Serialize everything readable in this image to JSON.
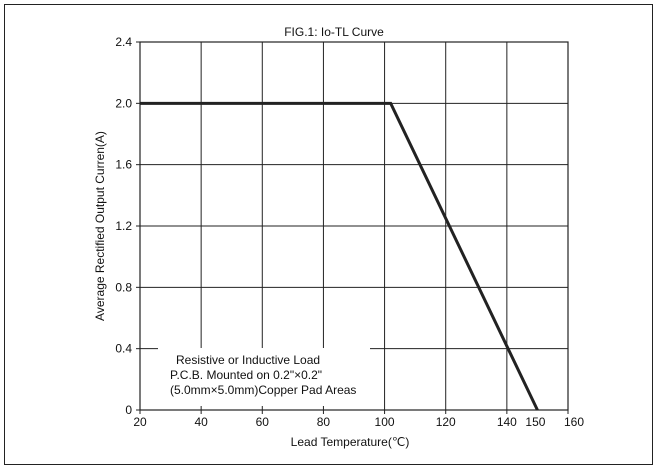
{
  "chart_data": {
    "type": "line",
    "title": "FIG.1: Io-TL Curve",
    "xlabel": "Lead Temperature(℃)",
    "ylabel": "Average Rectified Output Curren(A)",
    "xlim": [
      20,
      160
    ],
    "ylim": [
      0,
      2.4
    ],
    "xticks": [
      20,
      40,
      60,
      80,
      100,
      120,
      140,
      160
    ],
    "xtick_labels": [
      "20",
      "40",
      "60",
      "80",
      "100",
      "120",
      "140",
      "160"
    ],
    "extra_xtick": {
      "value": 150,
      "label": "150"
    },
    "yticks": [
      0,
      0.4,
      0.8,
      1.2,
      1.6,
      2.0,
      2.4
    ],
    "ytick_labels": [
      "0",
      "0.4",
      "0.8",
      "1.2",
      "1.6",
      "2.0",
      "2.4"
    ],
    "grid": true,
    "series": [
      {
        "x": [
          20,
          102,
          150
        ],
        "y": [
          2.0,
          2.0,
          0
        ]
      }
    ],
    "annotation": {
      "position": "bottom-left",
      "lines": [
        "Resistive or Inductive Load",
        "P.C.B. Mounted on 0.2\"×0.2\"",
        "(5.0mm×5.0mm)Copper Pad Areas"
      ]
    },
    "colors": {
      "line": "#222222",
      "grid": "#222222",
      "annotation_bg": "#ffffff"
    }
  }
}
